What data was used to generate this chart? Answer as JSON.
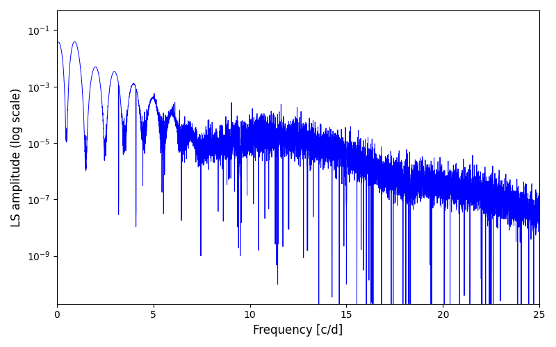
{
  "title": "",
  "xlabel": "Frequency [c/d]",
  "ylabel": "LS amplitude (log scale)",
  "line_color": "#0000ff",
  "line_width": 0.7,
  "xlim": [
    0,
    25
  ],
  "ylim_log": [
    2e-11,
    0.5
  ],
  "yscale": "log",
  "figsize": [
    8.0,
    5.0
  ],
  "dpi": 100,
  "background_color": "#ffffff",
  "seed": 42,
  "n_freq": 8000
}
